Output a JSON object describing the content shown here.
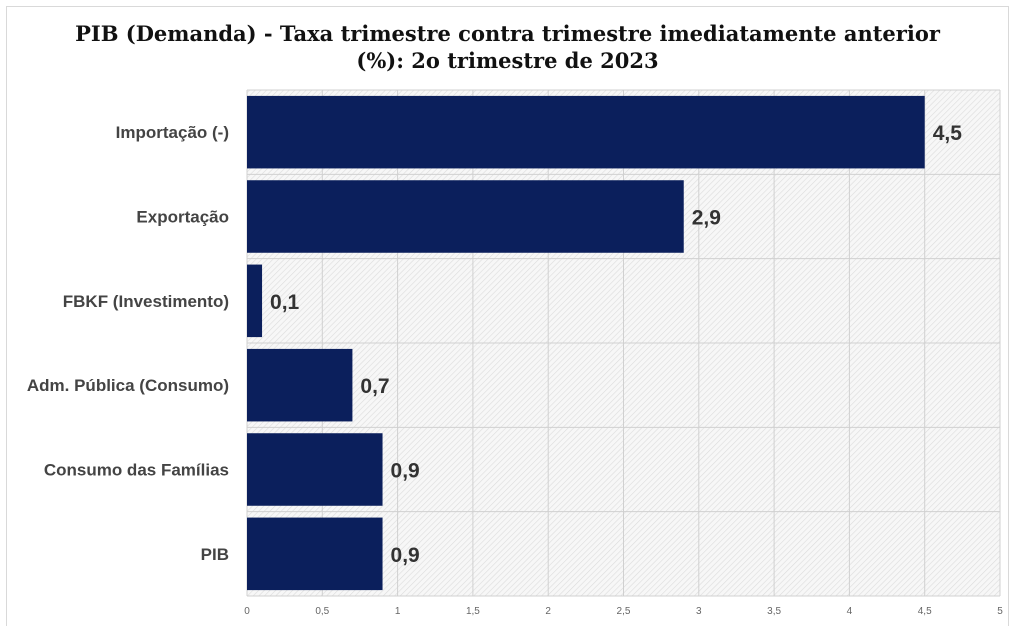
{
  "chart_data": {
    "type": "bar",
    "orientation": "horizontal",
    "title_line1": "PIB (Demanda) - Taxa trimestre contra trimestre imediatamente anterior",
    "title_line2": "(%): 2o trimestre de 2023",
    "categories": [
      "Importação (-)",
      "Exportação",
      "FBKF (Investimento)",
      "Adm. Pública (Consumo)",
      "Consumo das Famílias",
      "PIB"
    ],
    "values": [
      4.5,
      2.9,
      0.1,
      0.7,
      0.9,
      0.9
    ],
    "value_labels": [
      "4,5",
      "2,9",
      "0,1",
      "0,7",
      "0,9",
      "0,9"
    ],
    "xlim": [
      0,
      5
    ],
    "ticks": [
      0,
      0.5,
      1,
      1.5,
      2,
      2.5,
      3,
      3.5,
      4,
      4.5,
      5
    ],
    "tick_labels": [
      "0",
      "0,5",
      "1",
      "1,5",
      "2",
      "2,5",
      "3",
      "3,5",
      "4",
      "4,5",
      "5"
    ],
    "grid": true,
    "bar_color": "#0b1f5c",
    "plot_background": "hatched-gray"
  }
}
